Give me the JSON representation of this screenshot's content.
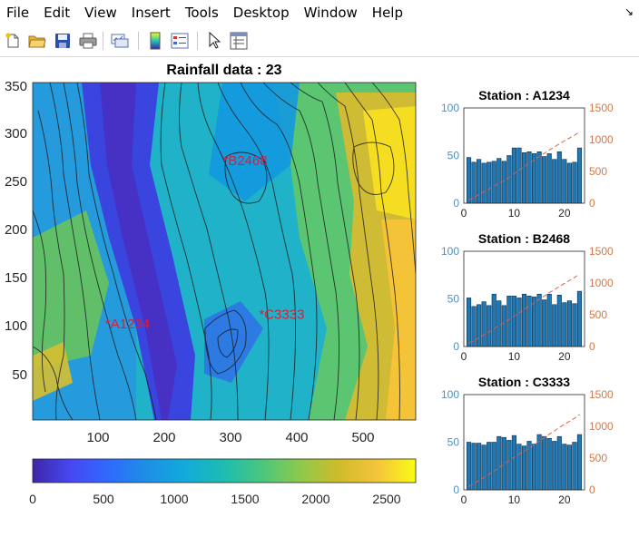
{
  "menu": [
    "File",
    "Edit",
    "View",
    "Insert",
    "Tools",
    "Desktop",
    "Window",
    "Help"
  ],
  "dock_arrow": "↘",
  "toolbar_icons": [
    "new-figure-icon",
    "open-file-icon",
    "save-icon",
    "print-icon",
    "link-plot-icon",
    "insert-colorbar-icon",
    "insert-legend-icon",
    "edit-plot-pointer-icon",
    "property-inspector-icon"
  ],
  "map": {
    "title": "Rainfall data : 23",
    "colormap": "parula",
    "xticks": [
      "100",
      "200",
      "300",
      "400",
      "500"
    ],
    "yticks": [
      "350",
      "300",
      "250",
      "200",
      "150",
      "100",
      "50"
    ],
    "xlim": [
      0,
      580
    ],
    "ylim": [
      0,
      355
    ],
    "stations": [
      {
        "id": "A1234",
        "x": 118,
        "y": 101
      },
      {
        "id": "B2468",
        "x": 296,
        "y": 273
      },
      {
        "id": "C3333",
        "x": 351,
        "y": 111
      }
    ],
    "marker_color": "#d81e3c"
  },
  "colorbar": {
    "ticks": [
      "0",
      "500",
      "1000",
      "1500",
      "2000",
      "2500"
    ],
    "range": [
      0,
      2700
    ]
  },
  "chart_data": [
    {
      "type": "bar",
      "title": "Station : A1234",
      "x": [
        1,
        2,
        3,
        4,
        5,
        6,
        7,
        8,
        9,
        10,
        11,
        12,
        13,
        14,
        15,
        16,
        17,
        18,
        19,
        20,
        21,
        22,
        23
      ],
      "values": [
        48,
        43,
        46,
        42,
        43,
        44,
        47,
        44,
        50,
        58,
        58,
        53,
        54,
        52,
        54,
        49,
        52,
        46,
        54,
        46,
        42,
        43,
        58
      ],
      "left_axis": {
        "ylim": [
          0,
          100
        ],
        "ticks": [
          "0",
          "50",
          "100"
        ],
        "color": "#4f8fbe"
      },
      "right_axis": {
        "ylim": [
          0,
          1500
        ],
        "ticks": [
          "0",
          "500",
          "1000",
          "1500"
        ],
        "color": "#d0794a"
      },
      "xticks": [
        "0",
        "10",
        "20"
      ],
      "cumulative": [
        48,
        91,
        137,
        179,
        222,
        266,
        313,
        357,
        407,
        465,
        523,
        576,
        630,
        682,
        736,
        785,
        837,
        883,
        937,
        983,
        1025,
        1068,
        1126
      ]
    },
    {
      "type": "bar",
      "title": "Station : B2468",
      "x": [
        1,
        2,
        3,
        4,
        5,
        6,
        7,
        8,
        9,
        10,
        11,
        12,
        13,
        14,
        15,
        16,
        17,
        18,
        19,
        20,
        21,
        22,
        23
      ],
      "values": [
        51,
        42,
        44,
        47,
        43,
        55,
        48,
        43,
        53,
        53,
        51,
        55,
        53,
        52,
        55,
        49,
        55,
        44,
        54,
        46,
        48,
        45,
        58
      ],
      "left_axis": {
        "ylim": [
          0,
          100
        ],
        "ticks": [
          "0",
          "50",
          "100"
        ],
        "color": "#4f8fbe"
      },
      "right_axis": {
        "ylim": [
          0,
          1500
        ],
        "ticks": [
          "0",
          "500",
          "1000",
          "1500"
        ],
        "color": "#d0794a"
      },
      "xticks": [
        "0",
        "10",
        "20"
      ],
      "cumulative": [
        51,
        93,
        137,
        184,
        227,
        282,
        330,
        373,
        426,
        479,
        530,
        585,
        638,
        690,
        745,
        794,
        849,
        893,
        947,
        993,
        1041,
        1086,
        1144
      ]
    },
    {
      "type": "bar",
      "title": "Station : C3333",
      "x": [
        1,
        2,
        3,
        4,
        5,
        6,
        7,
        8,
        9,
        10,
        11,
        12,
        13,
        14,
        15,
        16,
        17,
        18,
        19,
        20,
        21,
        22,
        23
      ],
      "values": [
        50,
        49,
        49,
        47,
        50,
        50,
        56,
        55,
        52,
        57,
        48,
        46,
        51,
        48,
        58,
        56,
        54,
        51,
        56,
        48,
        47,
        50,
        58
      ],
      "left_axis": {
        "ylim": [
          0,
          100
        ],
        "ticks": [
          "0",
          "50",
          "100"
        ],
        "color": "#4f8fbe"
      },
      "right_axis": {
        "ylim": [
          0,
          1500
        ],
        "ticks": [
          "0",
          "500",
          "1000",
          "1500"
        ],
        "color": "#d0794a"
      },
      "xticks": [
        "0",
        "10",
        "20"
      ],
      "cumulative": [
        50,
        99,
        148,
        195,
        245,
        295,
        351,
        406,
        458,
        515,
        563,
        609,
        660,
        708,
        766,
        822,
        876,
        927,
        983,
        1031,
        1078,
        1128,
        1186
      ]
    }
  ]
}
